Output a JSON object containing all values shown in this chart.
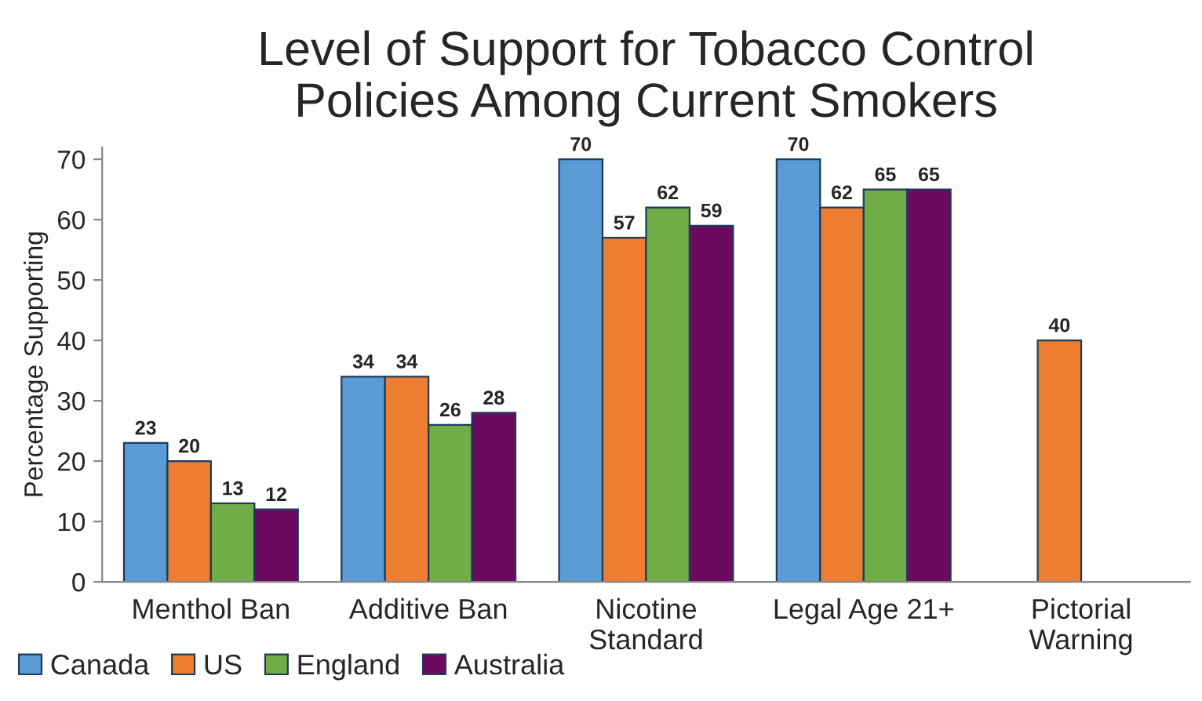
{
  "chart_data": {
    "type": "bar",
    "title": "Level of Support for Tobacco Control\nPolicies Among Current Smokers",
    "ylabel": "Percentage Supporting",
    "categories": [
      "Menthol Ban",
      "Additive Ban",
      "Nicotine\nStandard",
      "Legal Age 21+",
      "Pictorial\nWarning"
    ],
    "series": [
      {
        "name": "Canada",
        "color": "#5b9bd5",
        "values": [
          23,
          34,
          70,
          70,
          null
        ]
      },
      {
        "name": "US",
        "color": "#ed7d31",
        "values": [
          20,
          34,
          57,
          62,
          40
        ]
      },
      {
        "name": "England",
        "color": "#70ad47",
        "values": [
          13,
          26,
          62,
          65,
          null
        ]
      },
      {
        "name": "Australia",
        "color": "#6b0a5f",
        "values": [
          12,
          28,
          59,
          65,
          null
        ]
      }
    ],
    "ylim": [
      0,
      72
    ],
    "yticks": [
      0,
      10,
      20,
      30,
      40,
      50,
      60,
      70
    ],
    "data_labels": true,
    "grid": false,
    "legend": "bottom left"
  }
}
